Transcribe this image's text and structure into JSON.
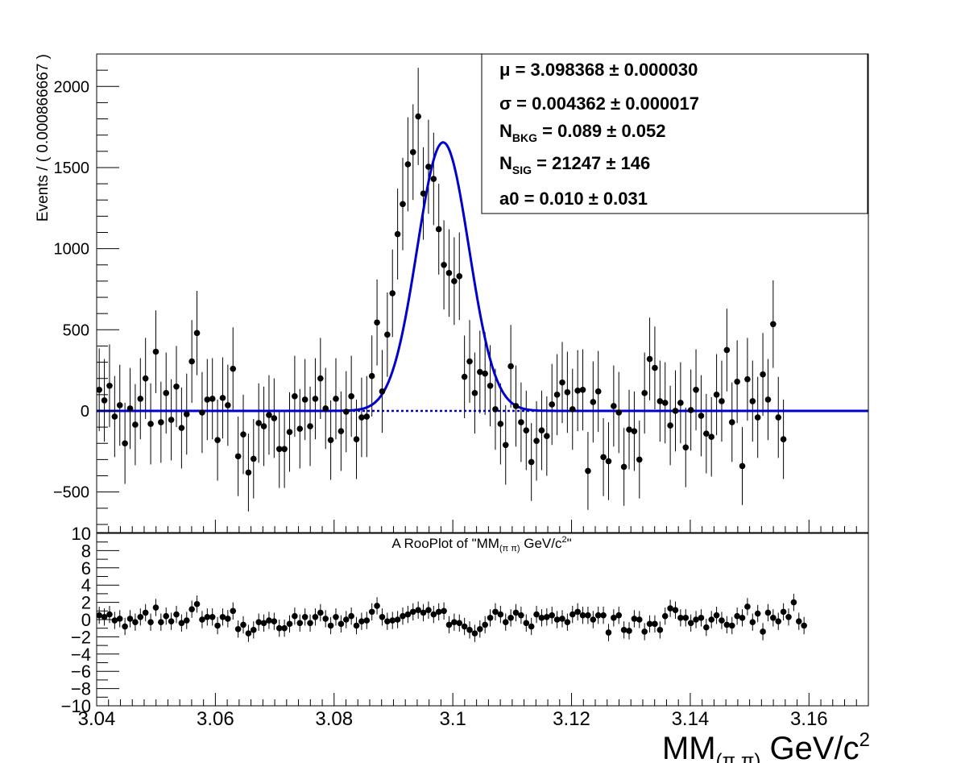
{
  "chart_data": [
    {
      "type": "scatter",
      "panel": "main",
      "title": "",
      "xlabel": "",
      "ylabel": "Events / ( 0.000866667 )",
      "xlim": [
        3.04,
        3.17
      ],
      "ylim": [
        -750,
        2200
      ],
      "y_ticks": [
        -500,
        0,
        500,
        1000,
        1500,
        2000
      ],
      "y_tick_labels": [
        "−500",
        "0",
        "500",
        "1000",
        "1500",
        "2000"
      ],
      "grid": false,
      "series": [
        {
          "kind": "data-points-with-errors",
          "color": "#000000",
          "x_start": 3.040433,
          "x_step": 0.000866667,
          "y": [
            130,
            65,
            155,
            -35,
            35,
            -200,
            15,
            -85,
            75,
            200,
            -80,
            365,
            -70,
            110,
            -55,
            150,
            -105,
            -20,
            305,
            480,
            -10,
            70,
            75,
            -180,
            80,
            35,
            260,
            -280,
            -145,
            -380,
            -295,
            -75,
            -95,
            -25,
            -45,
            -235,
            -235,
            -130,
            90,
            -110,
            70,
            -95,
            75,
            200,
            15,
            -180,
            75,
            -125,
            -5,
            90,
            -175,
            -40,
            -35,
            215,
            545,
            120,
            470,
            725,
            1090,
            1275,
            1520,
            1595,
            1815,
            1340,
            1505,
            1430,
            1120,
            900,
            850,
            800,
            830,
            210,
            305,
            110,
            240,
            230,
            155,
            10,
            -80,
            -210,
            275,
            30,
            -70,
            -120,
            -315,
            -185,
            -120,
            -155,
            40,
            100,
            175,
            115,
            10,
            125,
            130,
            -370,
            55,
            120,
            -285,
            -310,
            30,
            -10,
            -345,
            -115,
            -125,
            -300,
            110,
            320,
            265,
            60,
            50,
            -90,
            0,
            50,
            -225,
            5,
            130,
            -30,
            -140,
            -160,
            100,
            60,
            375,
            -70,
            180,
            -340,
            195,
            60,
            -40,
            225,
            70,
            535,
            -40,
            -175
          ],
          "err": [
            255,
            255,
            255,
            250,
            250,
            250,
            250,
            250,
            250,
            250,
            250,
            255,
            250,
            250,
            250,
            250,
            250,
            250,
            255,
            260,
            250,
            250,
            250,
            250,
            250,
            250,
            255,
            245,
            245,
            240,
            245,
            245,
            245,
            245,
            245,
            240,
            240,
            245,
            250,
            245,
            250,
            245,
            250,
            250,
            250,
            245,
            250,
            245,
            250,
            250,
            245,
            245,
            250,
            250,
            265,
            255,
            260,
            270,
            280,
            285,
            290,
            295,
            300,
            285,
            290,
            285,
            280,
            275,
            270,
            270,
            270,
            255,
            255,
            250,
            255,
            255,
            250,
            250,
            250,
            245,
            255,
            250,
            245,
            245,
            240,
            245,
            245,
            245,
            250,
            250,
            250,
            250,
            250,
            250,
            250,
            240,
            250,
            250,
            240,
            240,
            250,
            250,
            240,
            245,
            245,
            240,
            250,
            255,
            255,
            250,
            250,
            245,
            250,
            250,
            245,
            250,
            250,
            250,
            245,
            245,
            250,
            250,
            255,
            245,
            255,
            240,
            255,
            250,
            250,
            255,
            250,
            270,
            250,
            245
          ]
        },
        {
          "kind": "fit-curve",
          "name": "",
          "color": "#0000cc",
          "model": "gaussian + flat background",
          "mean": 3.098368,
          "sigma": 0.004362,
          "peak": 1655,
          "baseline": 0
        },
        {
          "kind": "background-dashed",
          "color": "#0000cc",
          "y": 0
        }
      ],
      "annotations": [
        {
          "label": "μ",
          "sub": "",
          "eq": " =  ",
          "value": "3.098368",
          "pm": " ± ",
          "err": "0.000030"
        },
        {
          "label": "σ",
          "sub": "",
          "eq": " =  ",
          "value": "0.004362",
          "pm": " ± ",
          "err": "0.000017"
        },
        {
          "label": "N",
          "sub": "BKG",
          "eq": " =  ",
          "value": "0.089",
          "pm": " ± ",
          "err": "0.052"
        },
        {
          "label": "N",
          "sub": "SIG",
          "eq": " =  ",
          "value": "21247",
          "pm": " ± ",
          "err": "146"
        },
        {
          "label": "a0",
          "sub": "",
          "eq": " =  ",
          "value": "0.010",
          "pm": " ± ",
          "err": "0.031"
        }
      ]
    },
    {
      "type": "scatter",
      "panel": "pull",
      "title": "A RooPlot of \"MM(π π) GeV/c²\"",
      "title_parts": {
        "pre": "A RooPlot of \"MM",
        "sub": "(π π)",
        "mid": " GeV/c",
        "sup": "2",
        "post": "\""
      },
      "xlabel": "MM(π π) GeV/c²",
      "xlabel_parts": {
        "pre": "MM",
        "sub": "(π π)",
        "mid": " GeV/c",
        "sup": "2"
      },
      "xlim": [
        3.04,
        3.17
      ],
      "ylim": [
        -10,
        10
      ],
      "x_ticks": [
        3.04,
        3.06,
        3.08,
        3.1,
        3.12,
        3.14,
        3.16
      ],
      "x_tick_labels": [
        "3.04",
        "3.06",
        "3.08",
        "3.1",
        "3.12",
        "3.14",
        "3.16"
      ],
      "y_ticks": [
        -10,
        -8,
        -6,
        -4,
        -2,
        0,
        2,
        4,
        6,
        8,
        10
      ],
      "y_tick_labels": [
        "−10",
        "−8",
        "−6",
        "−4",
        "−2",
        "0",
        "2",
        "4",
        "6",
        "8",
        "10"
      ],
      "grid": false,
      "series": [
        {
          "kind": "pull-points",
          "color": "#000000",
          "x_start": 3.040433,
          "x_step": 0.000866667,
          "y": [
            0.5,
            0.3,
            0.6,
            -0.1,
            0.1,
            -0.8,
            0.1,
            -0.3,
            0.3,
            0.8,
            -0.3,
            1.4,
            -0.3,
            0.4,
            -0.2,
            0.6,
            -0.4,
            -0.1,
            1.2,
            1.8,
            0.0,
            0.3,
            0.3,
            -0.7,
            0.3,
            0.1,
            1.0,
            -1.1,
            -0.6,
            -1.6,
            -1.2,
            -0.3,
            -0.4,
            -0.1,
            -0.2,
            -1.0,
            -1.0,
            -0.5,
            0.4,
            -0.4,
            0.3,
            -0.4,
            0.3,
            0.8,
            0.1,
            -0.7,
            0.3,
            -0.5,
            0.0,
            0.4,
            -0.7,
            -0.2,
            -0.1,
            0.9,
            1.6,
            0.3,
            -0.2,
            -0.1,
            0.0,
            0.4,
            0.6,
            0.9,
            1.1,
            0.8,
            1.1,
            0.6,
            0.9,
            1.0,
            -0.6,
            -0.3,
            -0.4,
            -0.8,
            -1.2,
            -1.6,
            -1.1,
            -0.6,
            0.2,
            0.9,
            0.6,
            -0.3,
            0.2,
            0.8,
            0.5,
            -0.4,
            -0.8,
            0.6,
            0.2,
            0.3,
            0.5,
            0.0,
            0.1,
            -0.3,
            0.6,
            0.9,
            0.5,
            0.5,
            0.0,
            0.5,
            0.5,
            -1.5,
            0.2,
            0.5,
            -1.2,
            -1.3,
            0.1,
            0.0,
            -1.4,
            -0.5,
            -0.5,
            -1.2,
            0.4,
            1.3,
            1.1,
            0.2,
            0.2,
            -0.4,
            0.0,
            0.2,
            -0.9,
            0.0,
            0.5,
            -0.1,
            -0.6,
            -0.7,
            0.4,
            0.2,
            1.5,
            -0.3,
            0.7,
            -1.4,
            0.8,
            0.2,
            -0.2,
            0.9,
            0.3,
            2.0,
            -0.2,
            -0.7
          ],
          "err": 1
        }
      ]
    }
  ]
}
